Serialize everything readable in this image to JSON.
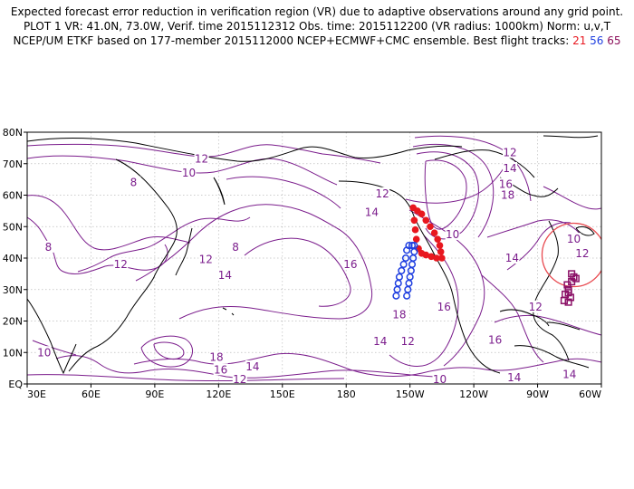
{
  "header": {
    "line1": "Expected forecast error reduction in verification region (VR) due to adaptive observations around any grid point.",
    "line2": "PLOT 1 VR: 41.0N, 73.0W, Verif. time 2015112312 Obs. time: 2015112200 (VR radius: 1000km) Norm: u,v,T",
    "line3_prefix": "NCEP/UM ETKF based on 177-member 2015112000 NCEP+ECMWF+CMC ensemble. Best flight tracks:",
    "track_ids": [
      "21",
      "56",
      "65"
    ]
  },
  "map": {
    "lat_range": [
      0,
      80
    ],
    "lon_range": [
      30,
      300
    ],
    "lat_ticks": [
      "EQ",
      "10N",
      "20N",
      "30N",
      "40N",
      "50N",
      "60N",
      "70N",
      "80N"
    ],
    "lon_ticks": [
      "30E",
      "60E",
      "90E",
      "120E",
      "150E",
      "180",
      "150W",
      "120W",
      "90W",
      "60W"
    ],
    "contour_color": "#7b1d8c",
    "contour_labels": [
      {
        "text": "12",
        "lon": 112,
        "lat": 71.5
      },
      {
        "text": "10",
        "lon": 106,
        "lat": 67
      },
      {
        "text": "8",
        "lon": 80,
        "lat": 64
      },
      {
        "text": "8",
        "lon": 40,
        "lat": 43.5
      },
      {
        "text": "12",
        "lon": 74,
        "lat": 38
      },
      {
        "text": "8",
        "lon": 128,
        "lat": 43.5
      },
      {
        "text": "12",
        "lon": 114,
        "lat": 39.5
      },
      {
        "text": "14",
        "lon": 123,
        "lat": 34.5
      },
      {
        "text": "16",
        "lon": 182,
        "lat": 38
      },
      {
        "text": "12",
        "lon": 197,
        "lat": 60.5
      },
      {
        "text": "14",
        "lon": 192,
        "lat": 54.5
      },
      {
        "text": "18",
        "lon": 205,
        "lat": 22
      },
      {
        "text": "16",
        "lon": 226,
        "lat": 24.5
      },
      {
        "text": "14",
        "lon": 196,
        "lat": 13.5
      },
      {
        "text": "12",
        "lon": 209,
        "lat": 13.5
      },
      {
        "text": "10",
        "lon": 38,
        "lat": 10
      },
      {
        "text": "18",
        "lon": 119,
        "lat": 8.5
      },
      {
        "text": "16",
        "lon": 121,
        "lat": 4.5
      },
      {
        "text": "14",
        "lon": 136,
        "lat": 5.5
      },
      {
        "text": "12",
        "lon": 130,
        "lat": 1.5
      },
      {
        "text": "10",
        "lon": 224,
        "lat": 1.5
      },
      {
        "text": "14",
        "lon": 259,
        "lat": 2
      },
      {
        "text": "16",
        "lon": 250,
        "lat": 14
      },
      {
        "text": "14",
        "lon": 285,
        "lat": 3
      },
      {
        "text": "12",
        "lon": 269,
        "lat": 24.5
      },
      {
        "text": "14",
        "lon": 258,
        "lat": 40
      },
      {
        "text": "10",
        "lon": 230,
        "lat": 47.5
      },
      {
        "text": "12",
        "lon": 257,
        "lat": 73.5
      },
      {
        "text": "14",
        "lon": 257,
        "lat": 68.5
      },
      {
        "text": "16",
        "lon": 255,
        "lat": 63.5
      },
      {
        "text": "18",
        "lon": 256,
        "lat": 60
      },
      {
        "text": "10",
        "lon": 287,
        "lat": 46
      },
      {
        "text": "12",
        "lon": 291,
        "lat": 41.5
      }
    ],
    "verification_region": {
      "lat": 41.0,
      "lon": 287.0,
      "color": "#e8494f"
    },
    "tracks": [
      {
        "id": "21",
        "color": "#e8171f",
        "symbol": "filled-circle",
        "points": [
          [
            211.5,
            56
          ],
          [
            213.5,
            55
          ],
          [
            215.5,
            54
          ],
          [
            217.5,
            52
          ],
          [
            219.5,
            50
          ],
          [
            221.5,
            48
          ],
          [
            223,
            46
          ],
          [
            224,
            44
          ],
          [
            224.5,
            42
          ],
          [
            225,
            40
          ],
          [
            222.5,
            40
          ],
          [
            220,
            40.5
          ],
          [
            217.5,
            41
          ],
          [
            215.5,
            41.5
          ],
          [
            214,
            43
          ],
          [
            213,
            46
          ],
          [
            212.5,
            49
          ],
          [
            212,
            52
          ]
        ]
      },
      {
        "id": "56",
        "color": "#1f3fe0",
        "symbol": "open-circle",
        "points": [
          [
            203.5,
            28
          ],
          [
            204,
            30
          ],
          [
            204.5,
            32
          ],
          [
            205,
            34
          ],
          [
            206,
            36
          ],
          [
            207,
            38
          ],
          [
            208,
            40
          ],
          [
            208.5,
            42.5
          ],
          [
            209.5,
            44
          ],
          [
            211,
            44
          ],
          [
            212,
            44
          ],
          [
            212,
            42
          ],
          [
            211.5,
            40
          ],
          [
            211,
            38
          ],
          [
            210.5,
            36
          ],
          [
            210,
            34
          ],
          [
            209.5,
            32
          ],
          [
            209,
            30
          ],
          [
            208.5,
            28
          ]
        ]
      },
      {
        "id": "65",
        "color": "#8b1066",
        "symbol": "open-square",
        "points": [
          [
            286,
            35
          ],
          [
            287,
            34
          ],
          [
            288,
            33.5
          ],
          [
            286,
            32.5
          ],
          [
            284,
            31.5
          ],
          [
            284.5,
            30
          ],
          [
            283,
            28.5
          ],
          [
            282.5,
            26.5
          ],
          [
            284.5,
            26
          ],
          [
            285.5,
            27.5
          ],
          [
            284.5,
            29
          ]
        ]
      }
    ]
  }
}
